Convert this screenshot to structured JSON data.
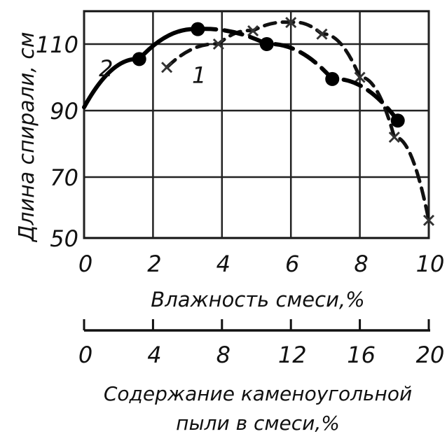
{
  "chart_data": {
    "type": "line",
    "title": "",
    "ylabel": "Длина спирали, см",
    "xlabel": "Влажность смеси,%",
    "x2label_line1": "Содержание каменоугольной",
    "x2label_line2": "пыли в смеси,%",
    "xlim": [
      0,
      10
    ],
    "ylim": [
      50,
      120
    ],
    "x_ticks": [
      "0",
      "2",
      "4",
      "6",
      "8",
      "10"
    ],
    "x_tick_values": [
      0,
      2,
      4,
      6,
      8,
      10
    ],
    "x2_ticks": [
      "0",
      "4",
      "8",
      "12",
      "16",
      "20"
    ],
    "y_ticks": [
      "50",
      "70",
      "90",
      "110"
    ],
    "y_tick_values": [
      50,
      70,
      90,
      110
    ],
    "grid": true,
    "series": [
      {
        "name": "1",
        "marker": "cross",
        "line": "dashed",
        "x": [
          2.4,
          3.9,
          4.9,
          6.0,
          6.9,
          8.0,
          9.0,
          10.0
        ],
        "y": [
          103,
          110,
          114,
          116.5,
          113,
          100,
          82,
          57
        ]
      },
      {
        "name": "2",
        "marker": "dot",
        "line": "solid-then-dashed",
        "x": [
          0,
          1.6,
          3.3,
          5.3,
          7.2,
          9.1
        ],
        "y": [
          91,
          105.5,
          114.5,
          110,
          99.5,
          87
        ]
      }
    ],
    "annotations": [
      {
        "text": "2",
        "x": 0.8,
        "y": 102
      },
      {
        "text": "1",
        "x": 3.5,
        "y": 100
      }
    ]
  }
}
